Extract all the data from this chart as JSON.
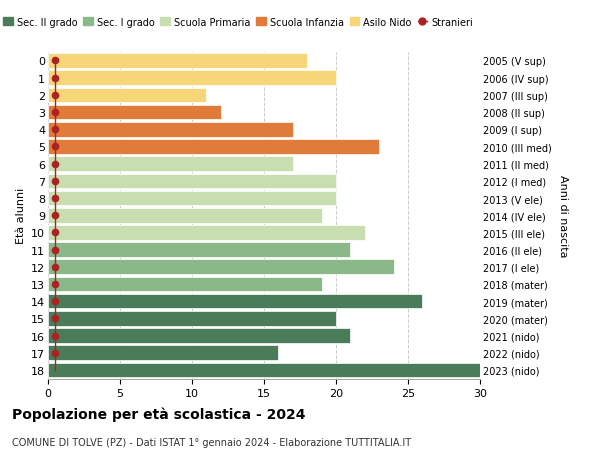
{
  "ages": [
    18,
    17,
    16,
    15,
    14,
    13,
    12,
    11,
    10,
    9,
    8,
    7,
    6,
    5,
    4,
    3,
    2,
    1,
    0
  ],
  "right_labels": [
    "2005 (V sup)",
    "2006 (IV sup)",
    "2007 (III sup)",
    "2008 (II sup)",
    "2009 (I sup)",
    "2010 (III med)",
    "2011 (II med)",
    "2012 (I med)",
    "2013 (V ele)",
    "2014 (IV ele)",
    "2015 (III ele)",
    "2016 (II ele)",
    "2017 (I ele)",
    "2018 (mater)",
    "2019 (mater)",
    "2020 (mater)",
    "2021 (nido)",
    "2022 (nido)",
    "2023 (nido)"
  ],
  "bar_values": [
    30,
    16,
    21,
    20,
    26,
    19,
    24,
    21,
    22,
    19,
    20,
    20,
    17,
    23,
    17,
    12,
    11,
    20,
    18
  ],
  "stranieri_dots": [
    0,
    1,
    1,
    1,
    1,
    1,
    1,
    1,
    1,
    1,
    1,
    1,
    1,
    1,
    1,
    1,
    1,
    1,
    1
  ],
  "bar_colors": [
    "#4a7c59",
    "#4a7c59",
    "#4a7c59",
    "#4a7c59",
    "#4a7c59",
    "#8ab888",
    "#8ab888",
    "#8ab888",
    "#c8ddb0",
    "#c8ddb0",
    "#c8ddb0",
    "#c8ddb0",
    "#c8ddb0",
    "#e07b39",
    "#e07b39",
    "#e07b39",
    "#f7d67a",
    "#f7d67a",
    "#f7d67a"
  ],
  "sec2_color": "#4a7c59",
  "sec1_color": "#8ab888",
  "primaria_color": "#c8ddb0",
  "infanzia_color": "#e07b39",
  "nido_color": "#f7d67a",
  "stranieri_color": "#aa2222",
  "title": "Popolazione per età scolastica - 2024",
  "subtitle": "COMUNE DI TOLVE (PZ) - Dati ISTAT 1° gennaio 2024 - Elaborazione TUTTITALIA.IT",
  "ylabel_left": "Età alunni",
  "ylabel_right": "Anni di nascita",
  "xlim": [
    0,
    30
  ],
  "xticks": [
    0,
    5,
    10,
    15,
    20,
    25,
    30
  ],
  "background_color": "#ffffff",
  "grid_color": "#cccccc",
  "legend_labels": [
    "Sec. II grado",
    "Sec. I grado",
    "Scuola Primaria",
    "Scuola Infanzia",
    "Asilo Nido",
    "Stranieri"
  ]
}
